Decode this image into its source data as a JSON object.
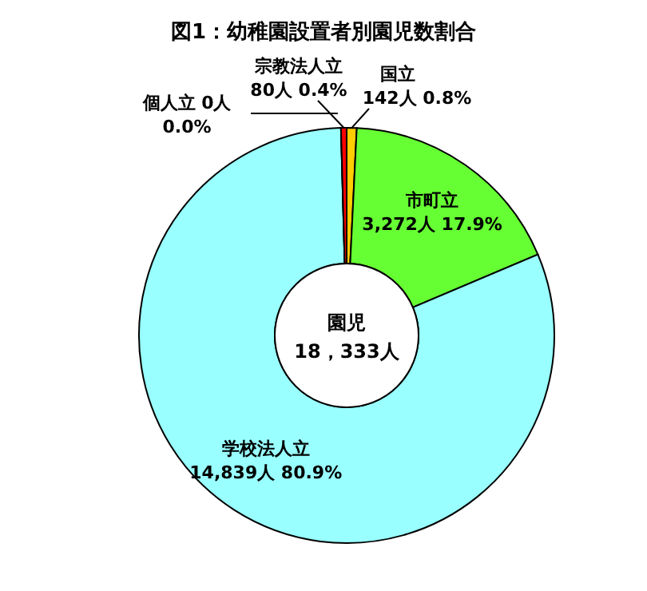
{
  "chart_data": {
    "type": "donut",
    "title": "図1：幼稚園設置者別園児数割合",
    "categories": [
      "国立",
      "市町立",
      "学校法人立",
      "個人立",
      "宗教法人立"
    ],
    "values": [
      142,
      3272,
      14839,
      0,
      80
    ],
    "value_labels": [
      "142人 0.8%",
      "3,272人 17.9%",
      "14,839人 80.9%",
      "0人 0.0%",
      "80人 0.4%"
    ],
    "colors": [
      "#ffcc00",
      "#66ff33",
      "#99ffff",
      "#ffffff",
      "#ff0000"
    ],
    "annotations": [
      "園児",
      "18，333人"
    ]
  }
}
